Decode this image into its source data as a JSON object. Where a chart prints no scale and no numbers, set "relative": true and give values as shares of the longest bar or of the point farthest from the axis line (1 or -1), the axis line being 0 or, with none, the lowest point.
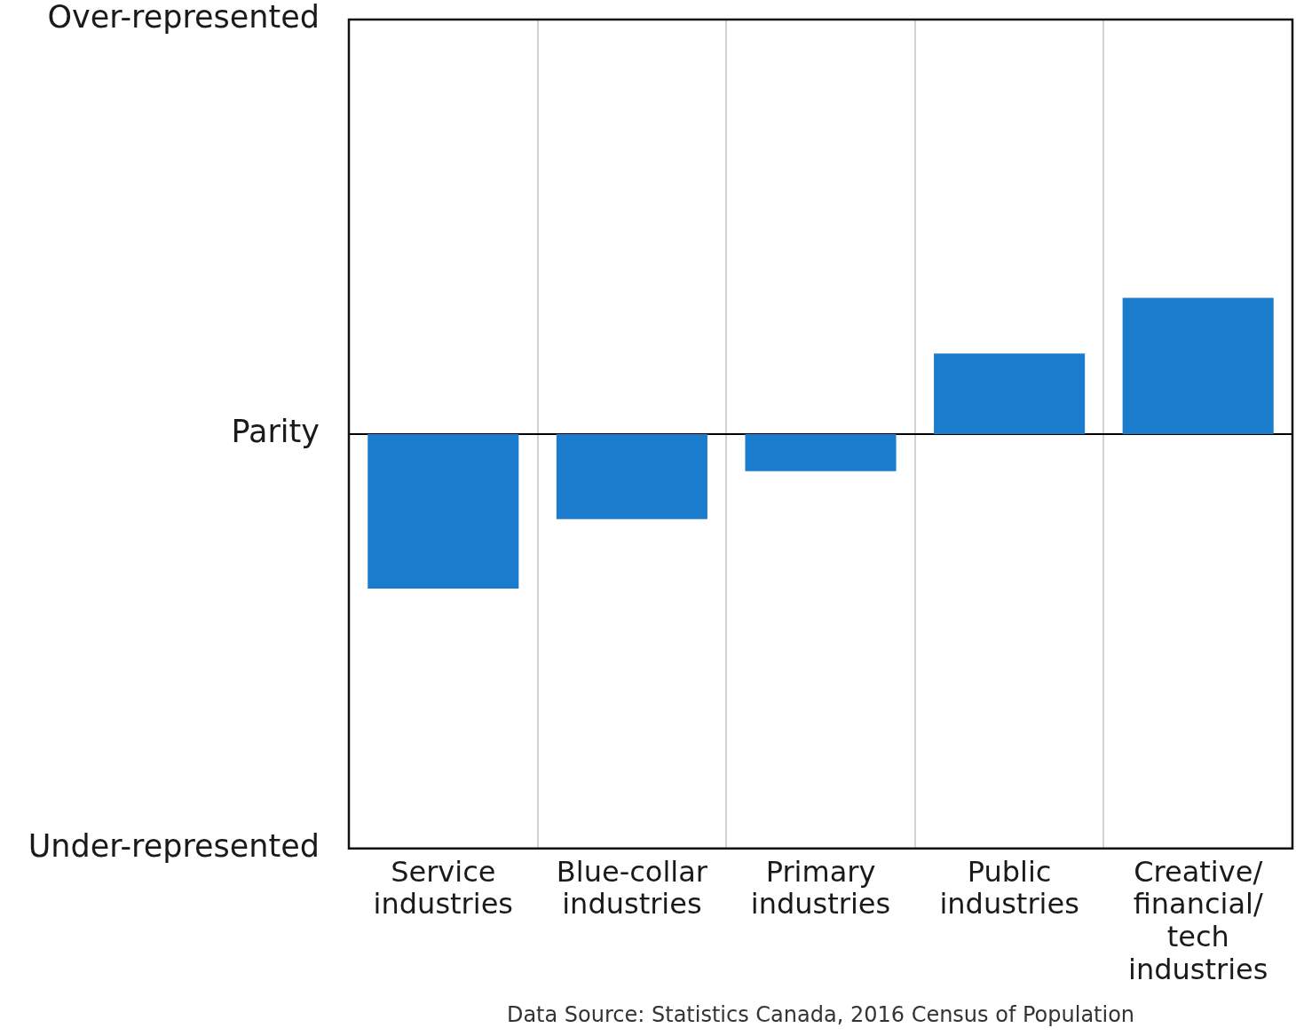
{
  "chart_data": {
    "type": "bar",
    "categories": [
      "Service industries",
      "Blue-collar industries",
      "Primary industries",
      "Public industries",
      "Creative/financial/tech industries"
    ],
    "values": [
      -1,
      -0.55,
      -0.24,
      0.52,
      0.88
    ],
    "color": "#1b7bcd",
    "relative": true,
    "grid": "x",
    "ref_lines": [
      {
        "axis": "y",
        "value": 0,
        "label": "Parity",
        "color": "#000000"
      }
    ],
    "annotations": [
      "Over-represented",
      "Under-represented",
      "Data Source: Statistics Canada, 2016 Census of Population"
    ]
  }
}
